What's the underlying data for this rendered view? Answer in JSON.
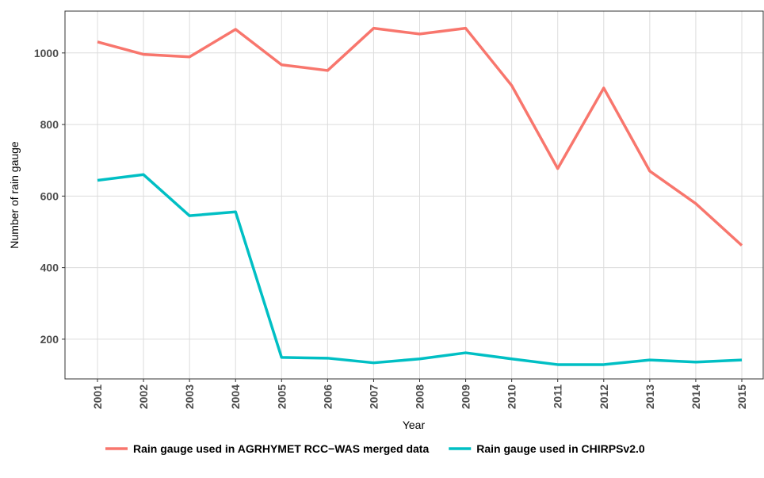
{
  "chart_data": {
    "type": "line",
    "x_label": "Year",
    "y_label": "Number of rain gauge",
    "categories": [
      "2001",
      "2002",
      "2003",
      "2004",
      "2005",
      "2006",
      "2007",
      "2008",
      "2009",
      "2010",
      "2011",
      "2012",
      "2013",
      "2014",
      "2015"
    ],
    "series": [
      {
        "name": "Rain gauge used in AGRHYMET RCC−WAS merged data",
        "color": "#F8766D",
        "values": [
          1031,
          996,
          989,
          1066,
          967,
          951,
          1069,
          1053,
          1069,
          909,
          677,
          902,
          670,
          579,
          462
        ]
      },
      {
        "name": "Rain gauge used in CHIRPSv2.0",
        "color": "#00BFC4",
        "values": [
          644,
          660,
          545,
          556,
          149,
          147,
          134,
          145,
          162,
          145,
          129,
          129,
          142,
          136,
          142
        ]
      }
    ],
    "ylim": [
      89,
      1117
    ],
    "yticks": [
      200,
      400,
      600,
      800,
      1000
    ],
    "grid": true,
    "legend": "bottom"
  }
}
